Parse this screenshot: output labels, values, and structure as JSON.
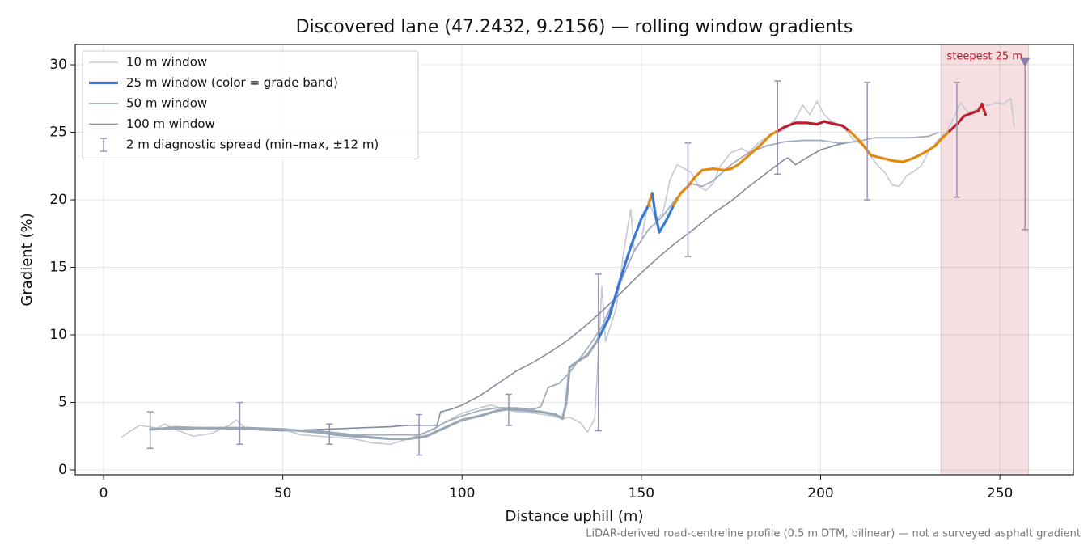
{
  "chart_data": {
    "type": "line",
    "title": "Discovered lane (47.2432, 9.2156) — rolling window gradients",
    "x_label": "Distance uphill (m)",
    "y_label": "Gradient (%)",
    "footnote": "LiDAR-derived road-centreline profile (0.5 m DTM, bilinear) — not a surveyed asphalt gradient",
    "xlim": [
      -7.9,
      270.5
    ],
    "ylim": [
      -0.36,
      31.5
    ],
    "xticks": [
      0,
      50,
      100,
      150,
      200,
      250
    ],
    "yticks": [
      0,
      5,
      10,
      15,
      20,
      25,
      30
    ],
    "grid": true,
    "legend": "upper left",
    "series": [
      {
        "name": "10 m window",
        "color": "#c3cad6",
        "width": 1.6,
        "x": [
          5,
          7,
          10,
          15,
          17,
          20,
          25,
          30,
          35,
          37,
          40,
          45,
          50,
          55,
          60,
          65,
          70,
          75,
          80,
          85,
          90,
          95,
          100,
          105,
          108,
          112,
          115,
          120,
          125,
          128,
          130,
          133,
          135,
          137,
          139,
          140,
          143,
          145,
          147,
          148,
          150,
          152,
          154,
          156,
          158,
          160,
          162,
          164,
          166,
          168,
          170,
          172,
          175,
          178,
          180,
          183,
          186,
          190,
          193,
          195,
          197,
          199,
          201,
          203,
          206,
          209,
          212,
          214,
          216,
          218,
          220,
          222,
          224,
          226,
          228,
          230,
          233,
          235,
          237,
          239,
          241,
          243,
          245,
          247,
          249,
          251,
          253,
          254
        ],
        "values": [
          2.4,
          2.8,
          3.3,
          3.1,
          3.4,
          3.0,
          2.5,
          2.7,
          3.3,
          3.7,
          3.0,
          3.1,
          3.0,
          2.6,
          2.5,
          2.4,
          2.3,
          2.0,
          1.9,
          2.3,
          2.8,
          3.5,
          4.2,
          4.6,
          4.8,
          4.5,
          4.3,
          4.2,
          4.0,
          3.8,
          3.9,
          3.5,
          2.8,
          3.8,
          13.6,
          9.5,
          12,
          16,
          19.3,
          16.3,
          17,
          20,
          18.5,
          19,
          21.5,
          22.6,
          22.3,
          22,
          21,
          20.7,
          21.2,
          22.5,
          23.5,
          23.8,
          23.5,
          24.3,
          24.8,
          25.2,
          26,
          27.0,
          26.3,
          27.3,
          26.3,
          25.8,
          25.5,
          24.5,
          24,
          23.2,
          22.5,
          22.0,
          21.1,
          21.0,
          21.8,
          22.1,
          22.5,
          23.5,
          24.5,
          25.0,
          26.0,
          27.2,
          26.5,
          26.6,
          27.0,
          27.0,
          27.2,
          27.1,
          27.5,
          25.4
        ]
      },
      {
        "name": "25 m window (color = grade band)",
        "color": "#3a78d6",
        "width": 3.2,
        "band_thresholds": [
          10,
          20,
          25
        ],
        "band_colors": [
          "#9aa8b6",
          "#3a78d6",
          "#e08a10",
          "#c01c2c"
        ],
        "x": [
          13,
          20,
          25,
          30,
          40,
          50,
          55,
          60,
          65,
          70,
          75,
          80,
          85,
          90,
          95,
          100,
          105,
          110,
          113,
          118,
          122,
          126,
          128,
          129,
          130,
          132,
          135,
          138,
          141,
          144,
          147,
          150,
          152,
          153,
          154,
          155,
          157,
          159,
          161,
          163,
          165,
          167,
          170,
          173,
          175,
          177,
          180,
          183,
          186,
          188,
          190,
          193,
          196,
          199,
          201,
          204,
          206,
          208,
          210,
          212,
          214,
          217,
          220,
          223,
          226,
          229,
          232,
          234,
          236,
          238,
          240,
          242,
          244,
          245,
          246
        ],
        "values": [
          3.0,
          3.1,
          3.1,
          3.1,
          3.1,
          3.0,
          2.9,
          2.8,
          2.6,
          2.5,
          2.4,
          2.3,
          2.3,
          2.5,
          3.1,
          3.7,
          4.0,
          4.4,
          4.5,
          4.4,
          4.3,
          4.1,
          3.8,
          4.9,
          7.6,
          8.0,
          8.5,
          9.7,
          11.3,
          14.0,
          16.5,
          18.6,
          19.6,
          20.5,
          18.8,
          17.6,
          18.5,
          19.6,
          20.5,
          21.0,
          21.7,
          22.2,
          22.3,
          22.2,
          22.3,
          22.6,
          23.3,
          24.0,
          24.8,
          25.1,
          25.4,
          25.7,
          25.7,
          25.6,
          25.8,
          25.6,
          25.5,
          25.1,
          24.6,
          24.0,
          23.3,
          23.1,
          22.9,
          22.8,
          23.1,
          23.5,
          24.0,
          24.6,
          25.1,
          25.6,
          26.2,
          26.4,
          26.6,
          27.1,
          26.3
        ]
      },
      {
        "name": "50 m window",
        "color": "#a3adbe",
        "width": 1.8,
        "x": [
          13,
          20,
          30,
          40,
          50,
          60,
          70,
          80,
          88,
          92,
          95,
          100,
          105,
          110,
          115,
          120,
          122,
          124,
          127,
          130,
          133,
          136,
          139,
          142,
          145,
          148,
          152,
          156,
          160,
          164,
          167,
          170,
          175,
          180,
          185,
          190,
          195,
          200,
          205,
          210,
          215,
          220,
          225,
          230,
          233
        ],
        "values": [
          3.0,
          3.2,
          3.1,
          3.1,
          3.0,
          2.9,
          2.6,
          2.6,
          2.6,
          3.0,
          3.5,
          4.0,
          4.4,
          4.6,
          4.6,
          4.5,
          4.7,
          6.1,
          6.4,
          7.2,
          8.3,
          9.4,
          10.6,
          12.4,
          14.4,
          16.2,
          17.8,
          18.8,
          20.2,
          21.2,
          21.0,
          21.4,
          22.6,
          23.5,
          24.0,
          24.3,
          24.4,
          24.4,
          24.2,
          24.3,
          24.6,
          24.6,
          24.6,
          24.7,
          25.0
        ]
      },
      {
        "name": "100 m window",
        "color": "#858d9c",
        "width": 1.6,
        "x": [
          13,
          30,
          50,
          60,
          70,
          80,
          85,
          90,
          93,
          94,
          97,
          100,
          105,
          110,
          115,
          120,
          125,
          130,
          135,
          140,
          145,
          150,
          155,
          160,
          165,
          170,
          175,
          180,
          185,
          190,
          191,
          193,
          196,
          200,
          205,
          209,
          210
        ],
        "values": [
          3.0,
          3.1,
          2.9,
          3.0,
          3.1,
          3.2,
          3.3,
          3.3,
          3.3,
          4.3,
          4.5,
          4.8,
          5.5,
          6.4,
          7.3,
          8.0,
          8.8,
          9.7,
          10.8,
          12.0,
          13.3,
          14.6,
          15.8,
          16.9,
          17.9,
          19.0,
          19.9,
          21.0,
          22.0,
          23.0,
          23.1,
          22.6,
          23.1,
          23.7,
          24.1,
          24.3,
          24.3
        ]
      }
    ],
    "error_bars": {
      "name": "2 m diagnostic spread (min–max, ±12 m)",
      "color": "#9a92b8",
      "x": [
        13,
        38,
        63,
        88,
        113,
        138,
        163,
        188,
        213,
        238,
        257
      ],
      "low": [
        1.6,
        1.9,
        1.9,
        1.1,
        3.3,
        2.9,
        15.8,
        21.9,
        20.0,
        20.2,
        17.8
      ],
      "high": [
        4.3,
        5.0,
        3.4,
        4.1,
        5.6,
        14.5,
        24.2,
        28.8,
        28.7,
        28.7,
        30.2
      ]
    },
    "highlight": {
      "x": [
        233.5,
        258
      ],
      "label": "steepest 25 m",
      "color": "#c01c2c"
    },
    "peak": {
      "x": 257,
      "y": 30.2,
      "color": "#8a7fa8"
    }
  }
}
